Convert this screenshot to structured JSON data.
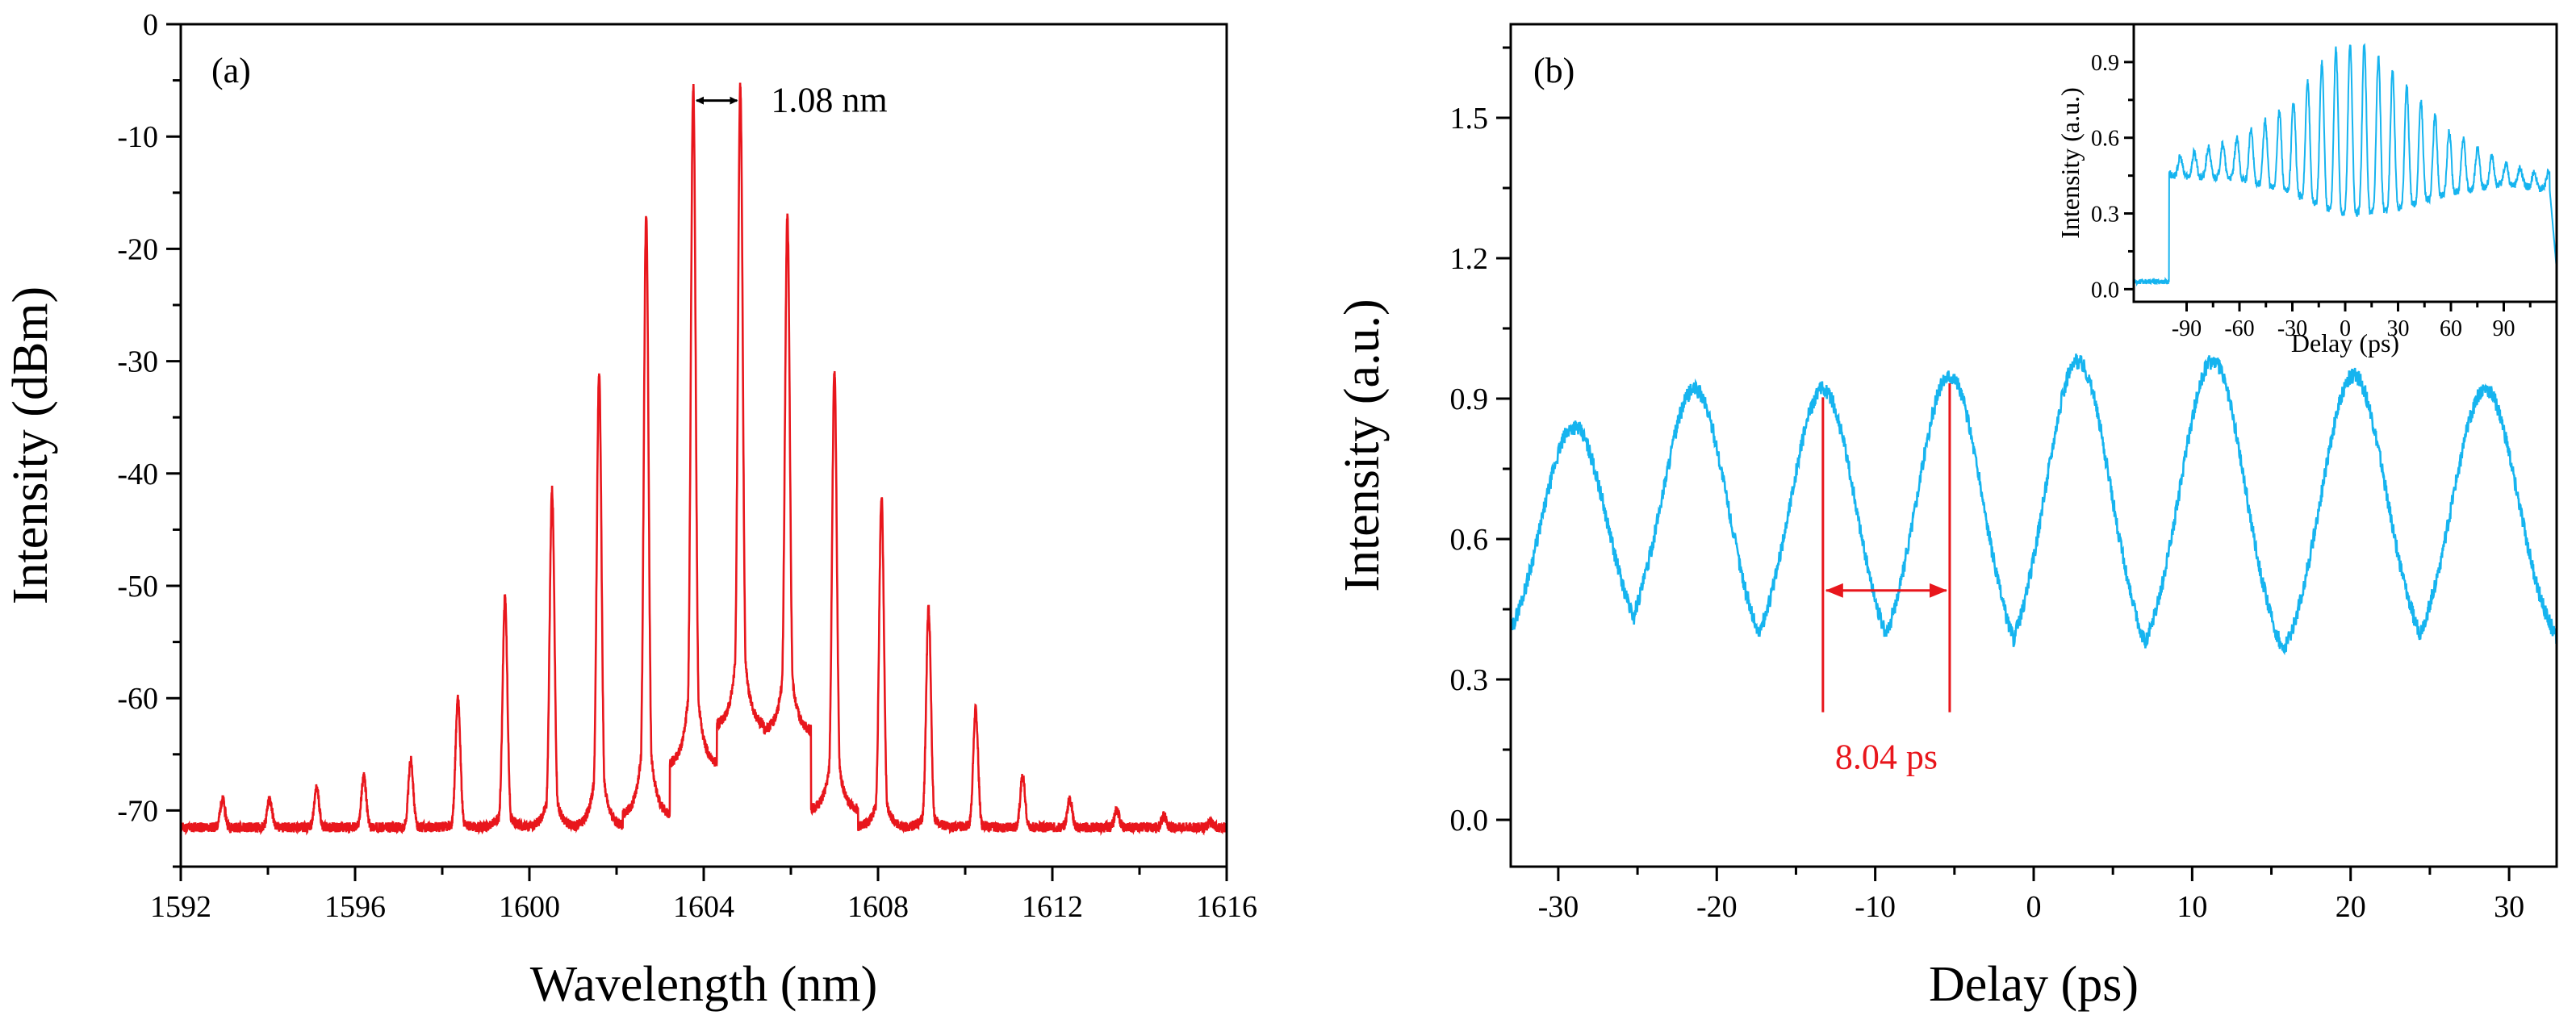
{
  "colors": {
    "spectrum": "#e8161c",
    "autocorrelation": "#16b4ef",
    "annotation_b": "#e8161c",
    "axis": "#000000"
  },
  "chart_data": [
    {
      "type": "line",
      "panel": "(a)",
      "xlabel": "Wavelength (nm)",
      "ylabel": "Intensity (dBm)",
      "xlim": [
        1592,
        1616
      ],
      "ylim": [
        -75,
        0
      ],
      "xticks": [
        1592,
        1596,
        1600,
        1604,
        1608,
        1612,
        1616
      ],
      "yticks": [
        0,
        -10,
        -20,
        -30,
        -40,
        -50,
        -60,
        -70
      ],
      "mode_spacing_nm": 1.08,
      "annotation": "1.08 nm",
      "series": [
        {
          "peaks_x": [
            1592.96,
            1594.04,
            1595.12,
            1596.2,
            1597.28,
            1598.36,
            1599.44,
            1600.52,
            1601.6,
            1602.68,
            1603.76,
            1604.84,
            1605.92,
            1607.0,
            1608.08,
            1609.16,
            1610.24,
            1611.32,
            1612.4,
            1613.48,
            1614.56,
            1615.64
          ],
          "peaks_y": [
            -69,
            -69,
            -68,
            -67,
            -65.5,
            -60,
            -51,
            -41.5,
            -31,
            -17,
            -5.5,
            -5.5,
            -17,
            -31,
            -42,
            -52,
            -61,
            -67,
            -69,
            -70,
            -70.5,
            -71
          ],
          "floor_y": [
            -71.5,
            -71.5,
            -71.5,
            -71.5,
            -71.5,
            -71.5,
            -71.5,
            -71.5,
            -71.5,
            -70.5,
            -66,
            -62.5,
            -63,
            -70,
            -71.5,
            -71.5,
            -71.5,
            -71.5,
            -71.5,
            -71.5,
            -71.5,
            -71.5
          ]
        }
      ]
    },
    {
      "type": "line",
      "panel": "(b)",
      "xlabel": "Delay (ps)",
      "ylabel": "Intensity (a.u.)",
      "xlim": [
        -33,
        33
      ],
      "ylim": [
        -0.1,
        1.7
      ],
      "xticks": [
        -30,
        -20,
        -10,
        0,
        10,
        20,
        30
      ],
      "yticks": [
        0.0,
        0.3,
        0.6,
        0.9,
        1.2,
        1.5
      ],
      "pulse_spacing_ps": 8.04,
      "annotation": "8.04 ps",
      "series": [
        {
          "peaks_x": [
            -29.0,
            -21.4,
            -13.3,
            -5.3,
            2.8,
            11.3,
            20.2,
            28.5
          ],
          "peaks_y": [
            0.84,
            0.92,
            0.92,
            0.95,
            0.98,
            0.98,
            0.95,
            0.92
          ],
          "valleys_x": [
            -33.0,
            -24.8,
            -16.8,
            -8.7,
            -0.5,
            7.3,
            16.0,
            24.5,
            33.0
          ],
          "valleys_y": [
            0.33,
            0.34,
            0.31,
            0.3,
            0.29,
            0.3,
            0.3,
            0.32,
            0.34
          ]
        }
      ],
      "inset": {
        "xlabel": "Delay (ps)",
        "ylabel": "Intensity (a.u.)",
        "xlim": [
          -120,
          120
        ],
        "ylim": [
          -0.05,
          1.05
        ],
        "xticks": [
          -90,
          -60,
          -30,
          0,
          30,
          60,
          90
        ],
        "yticks": [
          0.0,
          0.3,
          0.6,
          0.9
        ],
        "period_ps": 8.04,
        "onset_x": -100,
        "end_x": 116,
        "baseline_y": 0.03,
        "envelope_peak_x": [
          -95,
          -60,
          -30,
          -10,
          0,
          10,
          30,
          60,
          90,
          110
        ],
        "envelope_peak_y": [
          0.52,
          0.6,
          0.74,
          0.93,
          0.97,
          0.98,
          0.84,
          0.62,
          0.5,
          0.46
        ],
        "envelope_valley_y": [
          0.45,
          0.44,
          0.38,
          0.32,
          0.3,
          0.3,
          0.32,
          0.38,
          0.42,
          0.4
        ]
      }
    }
  ]
}
